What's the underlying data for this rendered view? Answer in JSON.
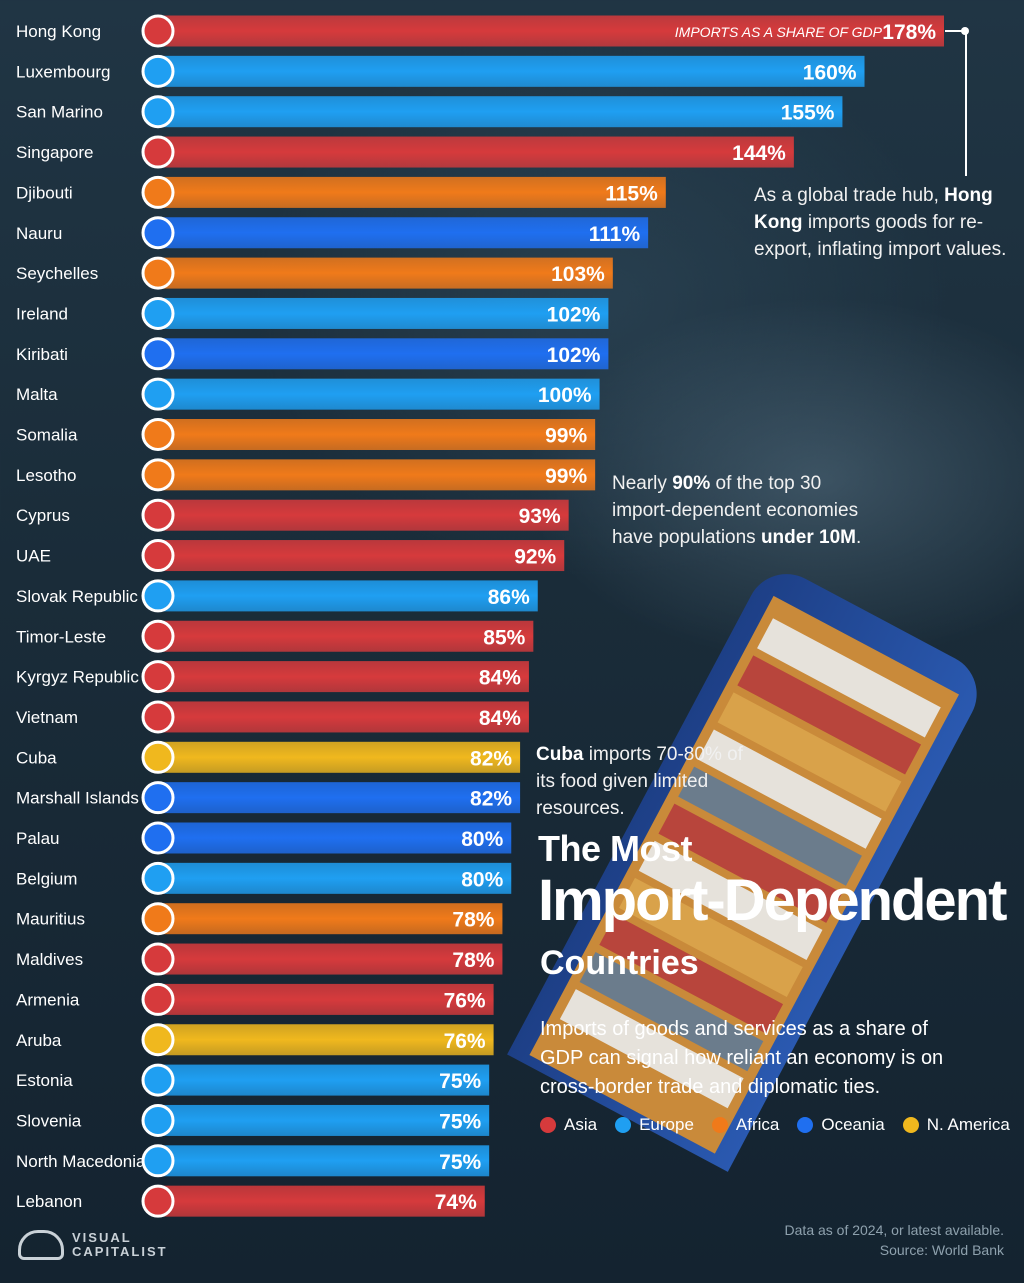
{
  "chart_data": {
    "type": "bar",
    "orientation": "horizontal",
    "value_label_prefix": "IMPORTS AS A SHARE OF GDP",
    "unit": "%",
    "xlim": [
      0,
      178
    ],
    "categories": [
      "Hong Kong",
      "Luxembourg",
      "San Marino",
      "Singapore",
      "Djibouti",
      "Nauru",
      "Seychelles",
      "Ireland",
      "Kiribati",
      "Malta",
      "Somalia",
      "Lesotho",
      "Cyprus",
      "UAE",
      "Slovak Republic",
      "Timor-Leste",
      "Kyrgyz Republic",
      "Vietnam",
      "Cuba",
      "Marshall Islands",
      "Palau",
      "Belgium",
      "Mauritius",
      "Maldives",
      "Armenia",
      "Aruba",
      "Estonia",
      "Slovenia",
      "North Macedonia",
      "Lebanon"
    ],
    "values": [
      178,
      160,
      155,
      144,
      115,
      111,
      103,
      102,
      102,
      100,
      99,
      99,
      93,
      92,
      86,
      85,
      84,
      84,
      82,
      82,
      80,
      80,
      78,
      78,
      76,
      76,
      75,
      75,
      75,
      74
    ],
    "regions": [
      "Asia",
      "Europe",
      "Europe",
      "Asia",
      "Africa",
      "Oceania",
      "Africa",
      "Europe",
      "Oceania",
      "Europe",
      "Africa",
      "Africa",
      "Asia",
      "Asia",
      "Europe",
      "Asia",
      "Asia",
      "Asia",
      "N. America",
      "Oceania",
      "Oceania",
      "Europe",
      "Africa",
      "Asia",
      "Asia",
      "N. America",
      "Europe",
      "Europe",
      "Europe",
      "Asia"
    ],
    "legend": [
      {
        "name": "Asia",
        "color": "#d63a3c"
      },
      {
        "name": "Europe",
        "color": "#1f9ff2"
      },
      {
        "name": "Africa",
        "color": "#f07a1a"
      },
      {
        "name": "Oceania",
        "color": "#1f6ff0"
      },
      {
        "name": "N. America",
        "color": "#f0b81e"
      }
    ],
    "legend_position": "bottom-right"
  },
  "title": {
    "line1": "The Most",
    "line2": "Import-Dependent",
    "line3": "Countries"
  },
  "subtitle": "Imports of goods and services as a share of GDP can signal how reliant an economy is on cross-border trade and diplomatic ties.",
  "annotations": {
    "hongkong": {
      "pre": "As a global trade hub, ",
      "bold": "Hong Kong",
      "post": " imports goods for re-export, inflating import values."
    },
    "population": {
      "pre": "Nearly ",
      "bold1": "90%",
      "mid": " of the top 30 import-dependent economies have populations ",
      "bold2": "under 10M",
      "post": "."
    },
    "cuba": {
      "bold": "Cuba",
      "post": " imports 70-80% of its food given limited resources."
    }
  },
  "footnote": {
    "line1": "Data as of 2024, or latest available.",
    "line2": "Source: World Bank"
  },
  "logo": {
    "line1": "VISUAL",
    "line2": "CAPITALIST"
  }
}
